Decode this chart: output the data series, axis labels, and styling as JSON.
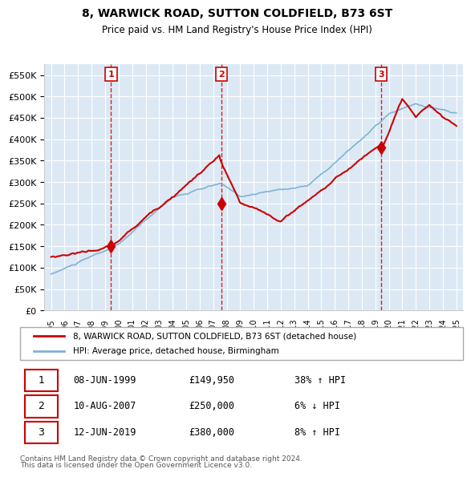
{
  "title": "8, WARWICK ROAD, SUTTON COLDFIELD, B73 6ST",
  "subtitle": "Price paid vs. HM Land Registry's House Price Index (HPI)",
  "legend_label_red": "8, WARWICK ROAD, SUTTON COLDFIELD, B73 6ST (detached house)",
  "legend_label_blue": "HPI: Average price, detached house, Birmingham",
  "transactions": [
    {
      "num": 1,
      "date": "08-JUN-1999",
      "price": 149950,
      "pct": "38%",
      "dir": "↑",
      "year": 1999.44
    },
    {
      "num": 2,
      "date": "10-AUG-2007",
      "price": 250000,
      "pct": "6%",
      "dir": "↓",
      "year": 2007.61
    },
    {
      "num": 3,
      "date": "12-JUN-2019",
      "price": 380000,
      "pct": "8%",
      "dir": "↑",
      "year": 2019.44
    }
  ],
  "footnote1": "Contains HM Land Registry data © Crown copyright and database right 2024.",
  "footnote2": "This data is licensed under the Open Government Licence v3.0.",
  "ylim": [
    0,
    575000
  ],
  "bg_color": "#dce9f5",
  "plot_bg": "#dce9f5"
}
